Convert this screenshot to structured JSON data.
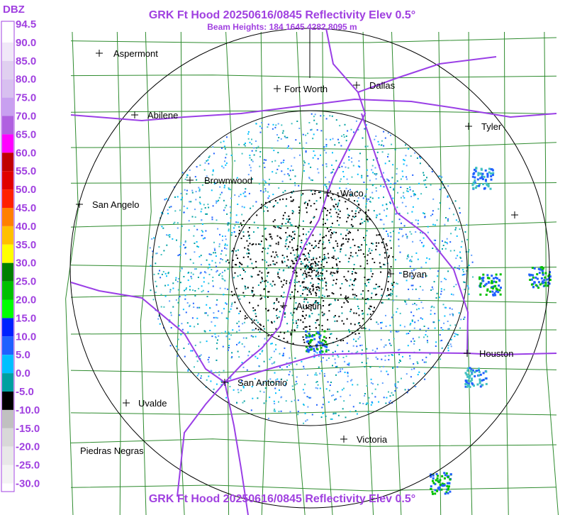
{
  "header": {
    "title": "GRK Ft Hood 20250616/0845 Reflectivity Elev 0.5°",
    "subtitle": "Beam Heights: 184 1645 4282 8095 m",
    "footer_title": "GRK Ft Hood 20250616/0845 Reflectivity Elev 0.5°"
  },
  "legend": {
    "unit": "DBZ",
    "labels": [
      "94.5",
      "90.0",
      "85.0",
      "80.0",
      "75.0",
      "70.0",
      "65.0",
      "60.0",
      "55.0",
      "50.0",
      "45.0",
      "40.0",
      "35.0",
      "30.0",
      "25.0",
      "20.0",
      "15.0",
      "10.0",
      "5.0",
      "0.0",
      "-5.0",
      "-10.0",
      "-15.0",
      "-20.0",
      "-25.0",
      "-30.0"
    ]
  },
  "cities": [
    {
      "name": "Aspermont"
    },
    {
      "name": "Fort Worth"
    },
    {
      "name": "Dallas"
    },
    {
      "name": "Abilene"
    },
    {
      "name": "Tyler"
    },
    {
      "name": "Brownwood"
    },
    {
      "name": "Waco"
    },
    {
      "name": "San Angelo"
    },
    {
      "name": "Bryan"
    },
    {
      "name": "Austin"
    },
    {
      "name": "Houston"
    },
    {
      "name": "San Antonio"
    },
    {
      "name": "Uvalde"
    },
    {
      "name": "Victoria"
    },
    {
      "name": "Piedras Negras"
    }
  ]
}
